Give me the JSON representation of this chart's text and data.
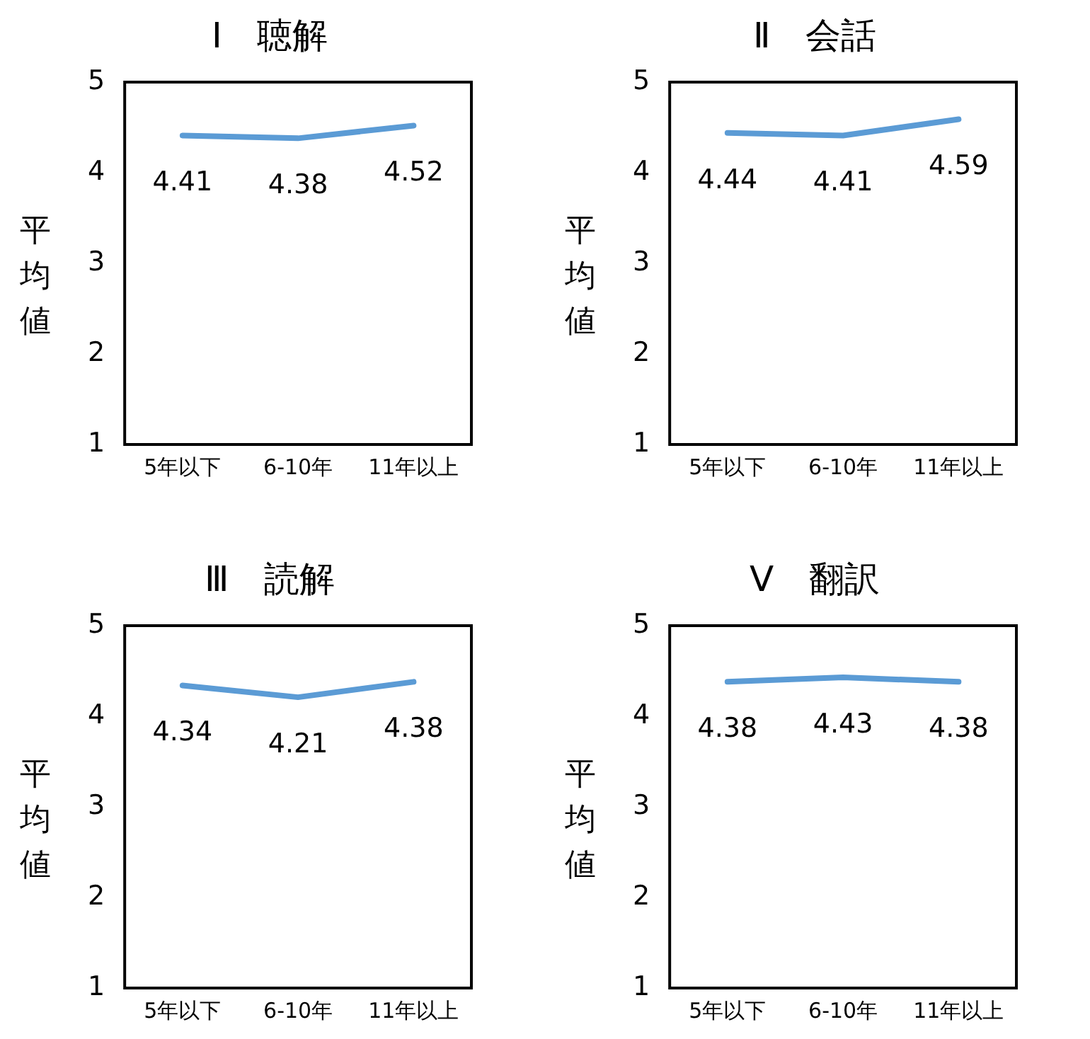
{
  "chart_data": [
    {
      "type": "line",
      "title": "Ⅰ　聴解",
      "ylabel": "平均値",
      "categories": [
        "5年以下",
        "6-10年",
        "11年以上"
      ],
      "series": [
        {
          "color": "#5b9bd5",
          "values": [
            4.41,
            4.38,
            4.52
          ]
        }
      ],
      "ylim": [
        1,
        5
      ],
      "yticks": [
        1,
        2,
        3,
        4,
        5
      ],
      "data_labels": true,
      "grid": false,
      "legend": false,
      "marker": "none",
      "line_style": "solid"
    },
    {
      "type": "line",
      "title": "Ⅱ　会話",
      "ylabel": "平均値",
      "categories": [
        "5年以下",
        "6-10年",
        "11年以上"
      ],
      "series": [
        {
          "color": "#5b9bd5",
          "values": [
            4.44,
            4.41,
            4.59
          ]
        }
      ],
      "ylim": [
        1,
        5
      ],
      "yticks": [
        1,
        2,
        3,
        4,
        5
      ],
      "data_labels": true,
      "grid": false,
      "legend": false,
      "marker": "none",
      "line_style": "solid"
    },
    {
      "type": "line",
      "title": "Ⅲ　読解",
      "ylabel": "平均値",
      "categories": [
        "5年以下",
        "6-10年",
        "11年以上"
      ],
      "series": [
        {
          "color": "#5b9bd5",
          "values": [
            4.34,
            4.21,
            4.38
          ]
        }
      ],
      "ylim": [
        1,
        5
      ],
      "yticks": [
        1,
        2,
        3,
        4,
        5
      ],
      "data_labels": true,
      "grid": false,
      "legend": false,
      "marker": "none",
      "line_style": "solid"
    },
    {
      "type": "line",
      "title": "Ⅴ　翻訳",
      "ylabel": "平均値",
      "categories": [
        "5年以下",
        "6-10年",
        "11年以上"
      ],
      "series": [
        {
          "color": "#5b9bd5",
          "values": [
            4.38,
            4.43,
            4.38
          ]
        }
      ],
      "ylim": [
        1,
        5
      ],
      "yticks": [
        1,
        2,
        3,
        4,
        5
      ],
      "data_labels": true,
      "grid": false,
      "legend": false,
      "marker": "none",
      "line_style": "solid"
    }
  ]
}
